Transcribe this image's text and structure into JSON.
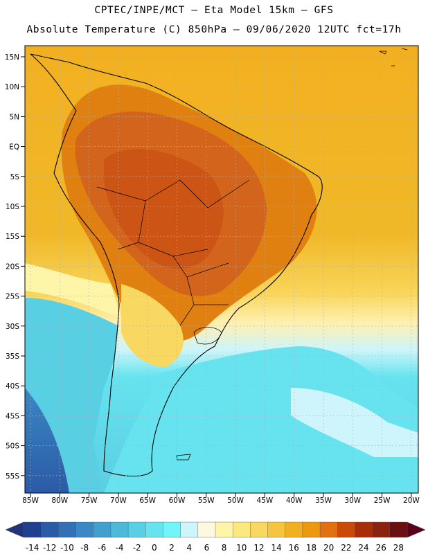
{
  "header": {
    "line1": "CPTEC/INPE/MCT –  Eta Model 15km – GFS",
    "line2": "Absolute Temperature (C) 850hPa – 09/06/2020 12UTC fct=17h"
  },
  "axes": {
    "lat_labels": [
      "15N",
      "10N",
      "5N",
      "EQ",
      "5S",
      "10S",
      "15S",
      "20S",
      "25S",
      "30S",
      "35S",
      "40S",
      "45S",
      "50S",
      "55S"
    ],
    "lon_labels": [
      "85W",
      "80W",
      "75W",
      "70W",
      "65W",
      "60W",
      "55W",
      "50W",
      "45W",
      "40W",
      "35W",
      "30W",
      "25W",
      "20W"
    ]
  },
  "colorbar": {
    "labels": [
      "-14",
      "-12",
      "-10",
      "-8",
      "-6",
      "-4",
      "-2",
      "0",
      "2",
      "4",
      "6",
      "8",
      "10",
      "12",
      "14",
      "16",
      "18",
      "20",
      "22",
      "24",
      "26",
      "28"
    ],
    "colors": [
      "#1f3f8f",
      "#2b5aa6",
      "#3470b5",
      "#3a88c4",
      "#42a0cf",
      "#4db8d8",
      "#59cfe3",
      "#66e3ef",
      "#70f5f8",
      "#cdf5fb",
      "#fff8e0",
      "#fff5a8",
      "#fce880",
      "#f8d860",
      "#f4c640",
      "#f0b020",
      "#ec9810",
      "#e07010",
      "#cc4a08",
      "#a82e08",
      "#8a2410",
      "#6a1010"
    ],
    "low_arrow_color": "#22337a",
    "high_arrow_color": "#5a0018"
  },
  "map": {
    "background_color": "#f2ac18",
    "land_color": "#d2641c",
    "core_color": "#cc5414",
    "cold_ocean_color": "#66e3ef",
    "coastline_color": "#000000",
    "grid_color": "#b0b0b0"
  }
}
